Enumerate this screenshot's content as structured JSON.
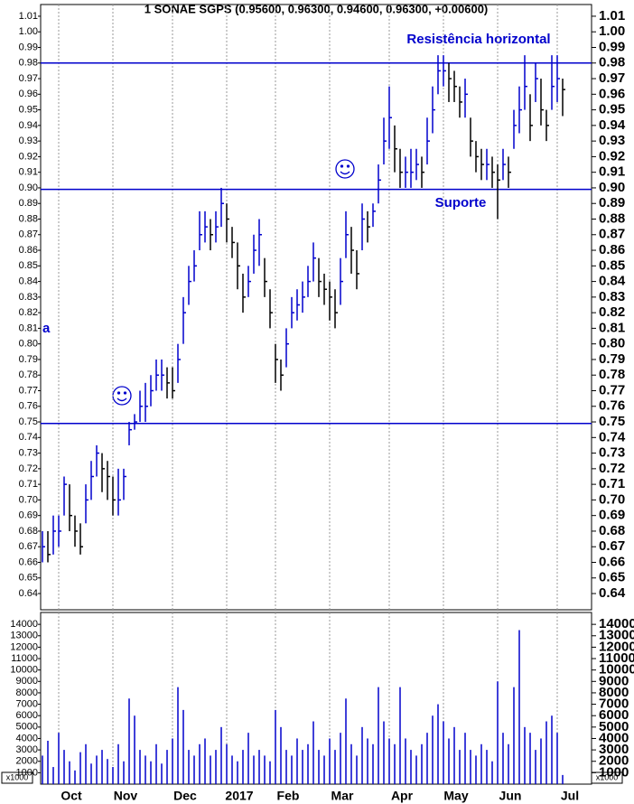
{
  "chart_data": [
    {
      "type": "hlc",
      "title": "1 SONAE SGPS (0.95600, 0.96300, 0.94600, 0.96300, +0.00600)",
      "annotations": [
        "Resistência horizontal",
        "Suporte",
        "a"
      ],
      "categories": [
        null,
        null,
        null,
        "Oct",
        null,
        null,
        null,
        null,
        null,
        null,
        null,
        null,
        null,
        "Nov",
        null,
        null,
        null,
        null,
        null,
        null,
        null,
        null,
        null,
        null,
        "Dec",
        null,
        null,
        null,
        null,
        null,
        null,
        null,
        null,
        null,
        "2017",
        null,
        null,
        null,
        null,
        null,
        null,
        null,
        null,
        "Feb",
        null,
        null,
        null,
        null,
        null,
        null,
        null,
        null,
        null,
        "Mar",
        null,
        null,
        null,
        null,
        null,
        null,
        null,
        null,
        null,
        null,
        "Apr",
        null,
        null,
        null,
        null,
        null,
        null,
        null,
        null,
        null,
        "May",
        null,
        null,
        null,
        null,
        null,
        null,
        null,
        null,
        null,
        "Jun",
        null,
        null,
        null,
        null,
        null,
        null,
        null,
        null,
        null,
        null,
        "Jul",
        null
      ],
      "series": [
        {
          "name": "high",
          "values": [
            0.68,
            0.68,
            0.69,
            0.69,
            0.715,
            0.71,
            0.69,
            0.685,
            0.71,
            0.725,
            0.735,
            0.73,
            0.725,
            0.715,
            0.72,
            0.72,
            0.75,
            0.755,
            0.77,
            0.775,
            0.78,
            0.79,
            0.79,
            0.785,
            0.785,
            0.8,
            0.83,
            0.85,
            0.86,
            0.885,
            0.885,
            0.88,
            0.885,
            0.9,
            0.89,
            0.875,
            0.865,
            0.845,
            0.85,
            0.87,
            0.88,
            0.855,
            0.835,
            0.8,
            0.79,
            0.81,
            0.83,
            0.835,
            0.84,
            0.85,
            0.865,
            0.855,
            0.845,
            0.84,
            0.835,
            0.855,
            0.885,
            0.875,
            0.86,
            0.89,
            0.885,
            0.89,
            0.915,
            0.945,
            0.965,
            0.94,
            0.925,
            0.92,
            0.925,
            0.925,
            0.92,
            0.945,
            0.965,
            0.985,
            0.985,
            0.98,
            0.975,
            0.965,
            0.97,
            0.945,
            0.93,
            0.925,
            0.925,
            0.92,
            0.915,
            0.925,
            0.92,
            0.95,
            0.965,
            0.985,
            0.96,
            0.98,
            0.97,
            0.95,
            0.985,
            0.985,
            0.97
          ]
        },
        {
          "name": "low",
          "values": [
            0.66,
            0.66,
            0.665,
            0.67,
            0.69,
            0.68,
            0.67,
            0.665,
            0.685,
            0.7,
            0.715,
            0.705,
            0.7,
            0.69,
            0.69,
            0.7,
            0.735,
            0.745,
            0.75,
            0.75,
            0.76,
            0.77,
            0.77,
            0.765,
            0.765,
            0.775,
            0.8,
            0.825,
            0.84,
            0.86,
            0.865,
            0.86,
            0.865,
            0.875,
            0.865,
            0.855,
            0.835,
            0.82,
            0.83,
            0.845,
            0.85,
            0.83,
            0.81,
            0.775,
            0.77,
            0.785,
            0.81,
            0.815,
            0.82,
            0.83,
            0.84,
            0.83,
            0.825,
            0.815,
            0.81,
            0.825,
            0.855,
            0.845,
            0.835,
            0.86,
            0.865,
            0.875,
            0.89,
            0.915,
            0.925,
            0.91,
            0.9,
            0.9,
            0.9,
            0.905,
            0.9,
            0.915,
            0.935,
            0.96,
            0.965,
            0.955,
            0.955,
            0.945,
            0.945,
            0.92,
            0.91,
            0.905,
            0.905,
            0.9,
            0.88,
            0.905,
            0.9,
            0.925,
            0.935,
            0.95,
            0.93,
            0.955,
            0.94,
            0.93,
            0.95,
            0.955,
            0.946
          ]
        },
        {
          "name": "close",
          "values": [
            0.67,
            0.665,
            0.68,
            0.68,
            0.71,
            0.69,
            0.68,
            0.67,
            0.7,
            0.715,
            0.73,
            0.72,
            0.715,
            0.7,
            0.7,
            0.715,
            0.745,
            0.75,
            0.76,
            0.76,
            0.77,
            0.78,
            0.78,
            0.775,
            0.77,
            0.79,
            0.82,
            0.84,
            0.85,
            0.87,
            0.875,
            0.87,
            0.875,
            0.89,
            0.88,
            0.865,
            0.85,
            0.83,
            0.84,
            0.86,
            0.87,
            0.84,
            0.82,
            0.79,
            0.78,
            0.8,
            0.82,
            0.825,
            0.83,
            0.84,
            0.855,
            0.84,
            0.835,
            0.83,
            0.82,
            0.84,
            0.87,
            0.86,
            0.845,
            0.88,
            0.875,
            0.885,
            0.905,
            0.93,
            0.945,
            0.925,
            0.91,
            0.91,
            0.91,
            0.915,
            0.91,
            0.93,
            0.95,
            0.975,
            0.975,
            0.97,
            0.965,
            0.955,
            0.96,
            0.93,
            0.92,
            0.915,
            0.915,
            0.91,
            0.905,
            0.915,
            0.91,
            0.94,
            0.95,
            0.965,
            0.94,
            0.97,
            0.95,
            0.94,
            0.965,
            0.97,
            0.963
          ]
        }
      ],
      "up_color": "#0000cc",
      "down_color": "#000000",
      "hlines": [
        0.98,
        0.899,
        0.749
      ],
      "hline_color": "#0000cc",
      "ylim": [
        0.6296,
        1.0175
      ],
      "yticks": [
        0.64,
        0.65,
        0.66,
        0.67,
        0.68,
        0.69,
        {
          "value": 0.7,
          "label": "0.70"
        },
        0.71,
        0.72,
        0.73,
        0.74,
        0.75,
        0.76,
        0.77,
        0.78,
        0.79,
        {
          "value": 0.8,
          "label": "0.80"
        },
        0.81,
        0.82,
        0.83,
        0.84,
        0.85,
        0.86,
        0.87,
        0.88,
        0.89,
        {
          "value": 0.9,
          "label": "0.90"
        },
        0.91,
        0.92,
        0.93,
        0.94,
        0.95,
        0.96,
        0.97,
        0.98,
        0.99,
        {
          "value": 1.0,
          "label": "1.00"
        },
        1.01
      ],
      "grid": true
    },
    {
      "type": "bar",
      "unit_label": "x1000",
      "color": "#0000cc",
      "values": [
        2500,
        3800,
        1500,
        4500,
        3000,
        2000,
        1200,
        2800,
        3500,
        1800,
        2500,
        3000,
        2200,
        1500,
        3500,
        2000,
        7500,
        6000,
        3000,
        2500,
        2000,
        3500,
        1800,
        3000,
        4000,
        8500,
        6500,
        3000,
        2500,
        3500,
        4000,
        2500,
        3000,
        5000,
        3500,
        2500,
        2000,
        3000,
        4500,
        2500,
        3000,
        2500,
        2000,
        6500,
        5000,
        3000,
        2500,
        4000,
        3000,
        3500,
        5500,
        3000,
        2500,
        4000,
        3000,
        4500,
        7500,
        3500,
        2500,
        5000,
        4000,
        3500,
        8500,
        5500,
        4000,
        3500,
        8500,
        4000,
        3000,
        2500,
        3500,
        4500,
        6000,
        7000,
        5500,
        4000,
        5000,
        3000,
        4500,
        3000,
        2500,
        3500,
        3000,
        2000,
        9000,
        4500,
        3500,
        8500,
        13500,
        5000,
        4500,
        3000,
        4000,
        5500,
        6000,
        4500,
        800
      ],
      "ylim": [
        0,
        15040
      ],
      "yticks": [
        1000,
        2000,
        3000,
        4000,
        5000,
        6000,
        7000,
        8000,
        9000,
        10000,
        11000,
        12000,
        13000,
        14000
      ]
    }
  ]
}
